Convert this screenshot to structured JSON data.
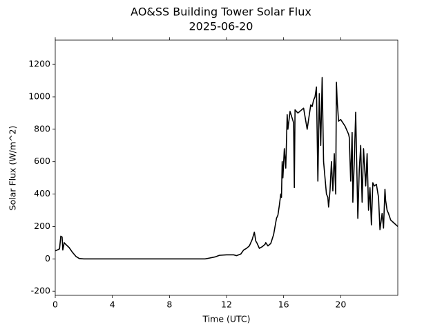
{
  "chart_data": {
    "type": "line",
    "title": "AO&SS Building Tower Solar Flux",
    "subtitle": "2025-06-20",
    "x_label": "Time (UTC)",
    "y_label": "Solar Flux (W/m^2)",
    "color": "#000000",
    "xlim": [
      0,
      24
    ],
    "ylim": [
      -225,
      1350
    ],
    "xticks": [
      0,
      4,
      8,
      12,
      16,
      20
    ],
    "yticks": [
      -200,
      0,
      200,
      400,
      600,
      800,
      1000,
      1200
    ],
    "grid": false,
    "x": [
      0,
      0.15,
      0.3,
      0.39,
      0.48,
      0.53,
      0.63,
      0.73,
      0.97,
      1.21,
      1.45,
      1.69,
      2.0,
      10.5,
      10.8,
      11.2,
      11.5,
      12.0,
      12.5,
      12.7,
      13.0,
      13.2,
      13.4,
      13.6,
      13.8,
      13.95,
      14.05,
      14.15,
      14.3,
      14.5,
      14.7,
      14.75,
      14.9,
      15.1,
      15.3,
      15.5,
      15.6,
      15.7,
      15.8,
      15.85,
      15.9,
      15.95,
      16.05,
      16.15,
      16.25,
      16.3,
      16.45,
      16.7,
      16.75,
      16.8,
      17.0,
      17.4,
      17.65,
      17.9,
      18.0,
      18.05,
      18.1,
      18.2,
      18.3,
      18.4,
      18.5,
      18.6,
      18.7,
      18.8,
      18.9,
      19.0,
      19.1,
      19.15,
      19.25,
      19.35,
      19.45,
      19.55,
      19.65,
      19.7,
      19.75,
      19.85,
      20.0,
      20.3,
      20.55,
      20.6,
      20.7,
      20.8,
      20.85,
      20.95,
      21.05,
      21.2,
      21.3,
      21.4,
      21.5,
      21.6,
      21.75,
      21.85,
      21.95,
      22.05,
      22.15,
      22.25,
      22.35,
      22.5,
      22.65,
      22.75,
      22.9,
      23.0,
      23.1,
      23.15,
      23.25,
      23.35,
      23.5,
      23.75,
      24.0
    ],
    "values": [
      50,
      55,
      62,
      140,
      135,
      55,
      100,
      90,
      70,
      40,
      15,
      2,
      0,
      0,
      5,
      12,
      22,
      25,
      25,
      20,
      30,
      55,
      65,
      80,
      120,
      165,
      110,
      95,
      65,
      75,
      90,
      100,
      80,
      95,
      150,
      250,
      270,
      330,
      400,
      380,
      600,
      500,
      680,
      560,
      890,
      800,
      910,
      840,
      440,
      920,
      900,
      930,
      800,
      950,
      940,
      960,
      980,
      1000,
      1060,
      480,
      1020,
      700,
      1120,
      600,
      500,
      400,
      380,
      320,
      420,
      600,
      420,
      650,
      400,
      1090,
      980,
      850,
      860,
      820,
      770,
      750,
      480,
      780,
      350,
      600,
      905,
      250,
      550,
      700,
      350,
      680,
      450,
      650,
      300,
      440,
      210,
      470,
      450,
      460,
      380,
      180,
      280,
      190,
      430,
      360,
      300,
      280,
      240,
      220,
      200
    ]
  }
}
